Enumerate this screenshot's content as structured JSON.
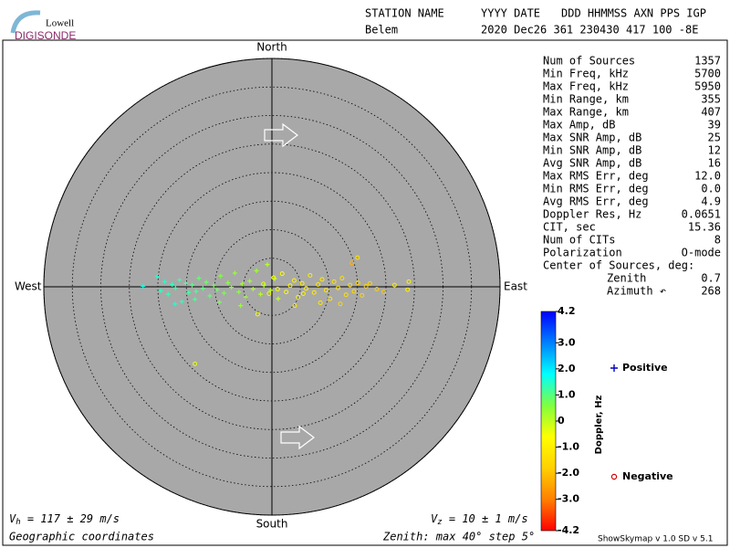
{
  "logo": {
    "top": "Lowell",
    "bottom": "DIGISONDE"
  },
  "header": {
    "labels": [
      "STATION NAME",
      "YYYY DATE",
      "DDD HHMMSS AXN PPS IGP"
    ],
    "values": [
      "Belem",
      "2020 Dec26 361 230430 417 100 -8E"
    ]
  },
  "stats": {
    "rows": [
      [
        "Num of Sources",
        "1357"
      ],
      [
        "Min Freq, kHz",
        "5700"
      ],
      [
        "Max Freq, kHz",
        "5950"
      ],
      [
        "Min Range, km",
        "355"
      ],
      [
        "Max Range, km",
        "407"
      ],
      [
        "Max Amp, dB",
        "39"
      ],
      [
        "Max SNR Amp, dB",
        "25"
      ],
      [
        "Min SNR Amp, dB",
        "12"
      ],
      [
        "Avg SNR Amp, dB",
        "16"
      ],
      [
        "Max RMS Err, deg",
        "12.0"
      ],
      [
        "Min RMS Err, deg",
        "0.0"
      ],
      [
        "Avg RMS Err, deg",
        "4.9"
      ],
      [
        "Doppler Res, Hz",
        "0.0651"
      ],
      [
        "CIT, sec",
        "15.36"
      ],
      [
        "Num of CITs",
        "8"
      ],
      [
        "Polarization",
        "O-mode"
      ]
    ],
    "center": {
      "label": "Center of Sources, deg:",
      "rows": [
        [
          "Zenith",
          "0.7"
        ],
        [
          "Azimuth ↶",
          "268"
        ]
      ]
    }
  },
  "footer": {
    "vh": {
      "symbol": "V",
      "sub": "h",
      "text": " = 117 ± 29 m/s"
    },
    "vz": {
      "symbol": "V",
      "sub": "z",
      "text": " = 10 ± 1 m/s"
    },
    "coords": "Geographic coordinates",
    "zenith": "Zenith: max 40°  step 5°",
    "version": "ShowSkymap v 1.0  SD v 5.1"
  },
  "chart_data": {
    "type": "scatter",
    "directions": {
      "north": "North",
      "south": "South",
      "east": "East",
      "west": "West"
    },
    "rlim": [
      0,
      40
    ],
    "rticks": [
      5,
      10,
      15,
      20,
      25,
      30,
      35,
      40
    ],
    "colorbar": {
      "label": "Doppler, Hz",
      "clim": [
        -4.2,
        4.2
      ],
      "ticks": [
        4.2,
        {
          "value": 3,
          "label": "3.0"
        },
        {
          "value": 2,
          "label": "2.0"
        },
        {
          "value": 1,
          "label": "1.0"
        },
        0,
        {
          "value": -1,
          "label": "-1.0"
        },
        {
          "value": -2,
          "label": "-2.0"
        },
        {
          "value": -3,
          "label": "-3.0"
        },
        -4.2
      ],
      "colormap": [
        "#ff0000",
        "#ff8000",
        "#ffd000",
        "#ffff00",
        "#80ff40",
        "#00ffff",
        "#0080ff",
        "#0000ff"
      ]
    },
    "series": [
      {
        "name": "Positive",
        "marker": "+",
        "color": "#0000c0",
        "x": [
          -22.6,
          -20.1,
          -19.5,
          -18.8,
          -18.2,
          -17.5,
          -16.9,
          -16.2,
          -15.8,
          -15.1,
          -14.6,
          -14.0,
          -13.3,
          -12.8,
          -12.1,
          -11.5,
          -10.9,
          -10.2,
          -9.6,
          -9.0,
          -8.4,
          -7.7,
          -7.1,
          -6.5,
          -5.8,
          -5.2,
          -4.6,
          -3.9,
          -3.3,
          -2.7,
          -2.0,
          -1.4,
          -0.8,
          -0.2,
          0.5,
          1.1,
          -17.0,
          -13.5,
          -9.2,
          -5.5
        ],
        "y": [
          0.1,
          1.8,
          -0.7,
          0.9,
          -1.3,
          0.4,
          -0.2,
          1.2,
          -2.6,
          0.6,
          -1.0,
          0.3,
          -0.8,
          1.5,
          -0.3,
          0.8,
          -1.6,
          0.2,
          -0.5,
          1.9,
          -1.1,
          0.7,
          -0.1,
          2.4,
          -0.9,
          0.5,
          -1.8,
          1.0,
          -0.4,
          2.8,
          -1.3,
          0.2,
          3.9,
          -0.6,
          1.4,
          -2.1,
          -3.0,
          -2.2,
          -2.7,
          -3.3
        ],
        "doppler": [
          1.6,
          1.5,
          1.4,
          1.5,
          1.3,
          1.4,
          1.2,
          1.3,
          1.4,
          1.1,
          1.2,
          1.0,
          1.1,
          0.9,
          1.0,
          0.8,
          0.9,
          0.7,
          0.8,
          0.6,
          0.7,
          0.5,
          0.6,
          0.4,
          0.5,
          0.3,
          0.4,
          0.3,
          0.2,
          0.3,
          0.1,
          0.2,
          0.1,
          0.0,
          0.1,
          0.0,
          1.5,
          1.1,
          0.7,
          0.4
        ]
      },
      {
        "name": "Negative",
        "marker": "o",
        "color": "#d00000",
        "x": [
          -1.5,
          -0.5,
          0.3,
          1.0,
          1.8,
          2.5,
          3.2,
          3.9,
          4.6,
          5.3,
          6.0,
          6.7,
          7.4,
          8.1,
          8.8,
          9.5,
          10.2,
          10.9,
          11.6,
          12.3,
          13.0,
          13.7,
          14.4,
          15.1,
          15.8,
          16.5,
          17.2,
          18.4,
          19.6,
          21.5,
          23.8,
          24.0,
          -2.5,
          4.0,
          8.5,
          12.0,
          -13.5,
          14.0,
          15.0,
          5.5
        ],
        "y": [
          0.5,
          -1.2,
          1.6,
          -0.4,
          2.3,
          -0.9,
          0.2,
          1.1,
          -1.8,
          0.6,
          -0.3,
          2.0,
          -1.0,
          0.4,
          1.3,
          -0.6,
          -2.1,
          0.9,
          -0.2,
          1.5,
          -1.4,
          0.3,
          -0.8,
          0.7,
          -1.5,
          0.1,
          0.6,
          -0.4,
          -0.9,
          0.3,
          -0.5,
          0.9,
          -4.8,
          -3.3,
          -2.8,
          -3.0,
          -13.5,
          4.2,
          5.1,
          -1.2
        ],
        "doppler": [
          -0.3,
          -0.4,
          -0.5,
          -0.5,
          -0.6,
          -0.7,
          -0.7,
          -0.8,
          -0.8,
          -0.9,
          -0.9,
          -1.0,
          -1.0,
          -1.1,
          -1.1,
          -1.2,
          -1.2,
          -1.3,
          -1.3,
          -1.4,
          -1.4,
          -1.5,
          -1.5,
          -1.6,
          -1.6,
          -1.7,
          -1.7,
          -1.8,
          -1.9,
          -1.0,
          -0.9,
          -0.9,
          -0.5,
          -1.0,
          -1.2,
          -1.6,
          -0.4,
          -2.2,
          -1.3,
          -0.8
        ]
      }
    ]
  }
}
